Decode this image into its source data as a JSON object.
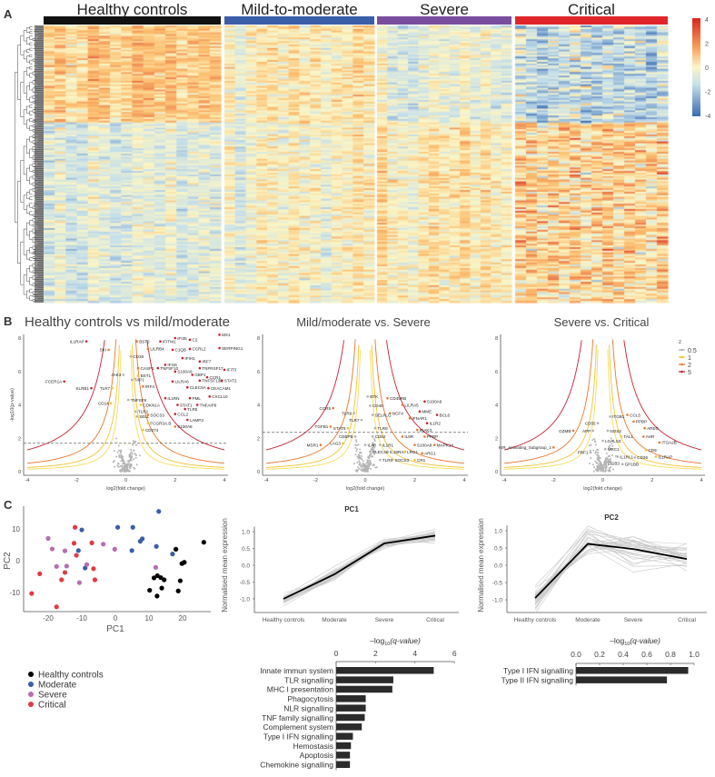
{
  "panel_labels": {
    "a": "A",
    "b": "B",
    "c": "C"
  },
  "chart_data": [
    {
      "type": "heatmap",
      "groups": [
        {
          "name": "Healthy controls",
          "color": "#111111",
          "columns": 16
        },
        {
          "name": "Mild-to-moderate",
          "color": "#3b5ea8",
          "columns": 14
        },
        {
          "name": "Severe",
          "color": "#7a4e9e",
          "columns": 13
        },
        {
          "name": "Critical",
          "color": "#e0262a",
          "columns": 14
        }
      ],
      "colorbar": {
        "ticks": [
          "4",
          "2",
          "0",
          "-2",
          "-4"
        ],
        "range": [
          -4,
          4
        ],
        "low": "#3a6bb2",
        "mid": "#fbf6c6",
        "high": "#d7261e"
      },
      "row_dendrogram": true
    },
    {
      "type": "scatter",
      "title": "Healthy controls vs mild/moderate",
      "xlabel": "log2(fold change)",
      "ylabel": "-log10(p-value)",
      "xlim": [
        -4,
        4
      ],
      "ylim": [
        0,
        8
      ],
      "xticks": [
        "-4",
        "-2",
        "0",
        "2",
        "4"
      ],
      "yticks": [
        "0",
        "2",
        "4",
        "6",
        "8"
      ],
      "threshold": 1.7,
      "labeled_genes": [
        {
          "gene": "IL1RAP",
          "x": -1.6,
          "y": 7.8
        },
        {
          "gene": "SKI",
          "x": -0.7,
          "y": 7.3
        },
        {
          "gene": "FCER1A",
          "x": -2.5,
          "y": 5.4
        },
        {
          "gene": "KLRB1",
          "x": -1.4,
          "y": 5.0
        },
        {
          "gene": "BST2",
          "x": 0.45,
          "y": 7.8
        },
        {
          "gene": "IFITM1",
          "x": 1.4,
          "y": 7.8
        },
        {
          "gene": "IFI35",
          "x": 2.0,
          "y": 8.0
        },
        {
          "gene": "C2",
          "x": 2.6,
          "y": 7.9
        },
        {
          "gene": "MX1",
          "x": 3.8,
          "y": 8.2
        },
        {
          "gene": "LILRB4",
          "x": 0.9,
          "y": 7.35
        },
        {
          "gene": "C1QB",
          "x": 1.9,
          "y": 7.3
        },
        {
          "gene": "CCRL2",
          "x": 2.6,
          "y": 7.35
        },
        {
          "gene": "SERPING1",
          "x": 3.8,
          "y": 7.4
        },
        {
          "gene": "CD36",
          "x": 0.2,
          "y": 6.9
        },
        {
          "gene": "IFIH1",
          "x": 2.3,
          "y": 6.8
        },
        {
          "gene": "IRF7",
          "x": 3.0,
          "y": 6.6
        },
        {
          "gene": "IFI16",
          "x": 1.6,
          "y": 6.4
        },
        {
          "gene": "CASP1",
          "x": 0.5,
          "y": 6.2
        },
        {
          "gene": "TNFSF10",
          "x": 1.3,
          "y": 6.2
        },
        {
          "gene": "TNFRSF17",
          "x": 3.0,
          "y": 6.2
        },
        {
          "gene": "IFIT3",
          "x": 4.0,
          "y": 6.1
        },
        {
          "gene": "S100A9",
          "x": 2.0,
          "y": 6.0
        },
        {
          "gene": "JAK3",
          "x": -0.1,
          "y": 5.8
        },
        {
          "gene": "BST1",
          "x": 0.5,
          "y": 5.75
        },
        {
          "gene": "GBP1",
          "x": 2.7,
          "y": 5.8
        },
        {
          "gene": "CCR1",
          "x": 3.3,
          "y": 5.65
        },
        {
          "gene": "TAP1",
          "x": 0.25,
          "y": 5.5
        },
        {
          "gene": "LILRA6",
          "x": 1.9,
          "y": 5.4
        },
        {
          "gene": "TNFSF13B",
          "x": 3.0,
          "y": 5.45
        },
        {
          "gene": "STAT2",
          "x": 3.9,
          "y": 5.45
        },
        {
          "gene": "TLR7",
          "x": -0.55,
          "y": 5.0
        },
        {
          "gene": "IRF4",
          "x": 0.7,
          "y": 5.1
        },
        {
          "gene": "CLEC5A",
          "x": 2.5,
          "y": 5.05
        },
        {
          "gene": "CEACAM1",
          "x": 3.35,
          "y": 5.0
        },
        {
          "gene": "TNFSF8",
          "x": 0.1,
          "y": 4.3
        },
        {
          "gene": "IL1RN",
          "x": 1.6,
          "y": 4.4
        },
        {
          "gene": "PML",
          "x": 2.6,
          "y": 4.4
        },
        {
          "gene": "CXCL10",
          "x": 3.4,
          "y": 4.5
        },
        {
          "gene": "CD14",
          "x": -0.6,
          "y": 4.1
        },
        {
          "gene": "CDKN1A",
          "x": 0.6,
          "y": 4.0
        },
        {
          "gene": "STAT1",
          "x": 2.1,
          "y": 4.0
        },
        {
          "gene": "TNFAIP6",
          "x": 2.9,
          "y": 4.0
        },
        {
          "gene": "TLR2",
          "x": 0.4,
          "y": 3.6
        },
        {
          "gene": "TLR5",
          "x": 2.4,
          "y": 3.75
        },
        {
          "gene": "CCL2",
          "x": 2.0,
          "y": 3.45
        },
        {
          "gene": "SELL",
          "x": 0.45,
          "y": 3.3
        },
        {
          "gene": "SOCS3",
          "x": 0.9,
          "y": 3.4
        },
        {
          "gene": "LAMP3",
          "x": 2.5,
          "y": 3.1
        },
        {
          "gene": "FCGR3A.B",
          "x": 0.9,
          "y": 2.9
        },
        {
          "gene": "S100A8",
          "x": 2.0,
          "y": 2.7
        },
        {
          "gene": "CD274",
          "x": 0.7,
          "y": 2.5
        }
      ]
    },
    {
      "type": "scatter",
      "title": "Mild/moderate vs. Severe",
      "xlabel": "log2(fold change)",
      "ylabel": "-log10(p-value)",
      "xlim": [
        -4,
        4
      ],
      "ylim": [
        0,
        8
      ],
      "xticks": [
        "-4",
        "-2",
        "0",
        "2",
        "4"
      ],
      "yticks": [
        "0",
        "2",
        "4",
        "6",
        "8"
      ],
      "threshold": 2.35,
      "labeled_genes": [
        {
          "gene": "BTK",
          "x": 0.1,
          "y": 4.5
        },
        {
          "gene": "CD45RB",
          "x": 0.9,
          "y": 4.4
        },
        {
          "gene": "CD46",
          "x": 0.2,
          "y": 3.95
        },
        {
          "gene": "LILRA5",
          "x": 1.5,
          "y": 4.0
        },
        {
          "gene": "S100A9",
          "x": 2.4,
          "y": 4.2
        },
        {
          "gene": "CCR5",
          "x": -1.3,
          "y": 3.8
        },
        {
          "gene": "TLR9",
          "x": -0.45,
          "y": 3.5
        },
        {
          "gene": "SELPLG",
          "x": 0.3,
          "y": 3.4
        },
        {
          "gene": "NCF4",
          "x": 1.0,
          "y": 3.5
        },
        {
          "gene": "MME",
          "x": 2.2,
          "y": 3.6
        },
        {
          "gene": "BCL6",
          "x": 2.9,
          "y": 3.4
        },
        {
          "gene": "TLR7",
          "x": -0.15,
          "y": 3.1
        },
        {
          "gene": "IFNAR1",
          "x": 1.8,
          "y": 3.2
        },
        {
          "gene": "IL1R2",
          "x": 2.5,
          "y": 2.9
        },
        {
          "gene": "TGFB1",
          "x": -1.4,
          "y": 2.7
        },
        {
          "gene": "STAT5",
          "x": -0.7,
          "y": 2.6
        },
        {
          "gene": "TLR8",
          "x": 0.4,
          "y": 2.6
        },
        {
          "gene": "IRAK3",
          "x": 2.1,
          "y": 2.5
        },
        {
          "gene": "CEBPB",
          "x": -0.4,
          "y": 2.1
        },
        {
          "gene": "CD52",
          "x": 0.3,
          "y": 2.1
        },
        {
          "gene": "IL6R",
          "x": 1.5,
          "y": 2.1
        },
        {
          "gene": "PPBP",
          "x": 2.4,
          "y": 2.1
        },
        {
          "gene": "MSR1",
          "x": -1.8,
          "y": 1.6
        },
        {
          "gene": "LAG3",
          "x": -0.9,
          "y": 1.7
        },
        {
          "gene": "IL4R",
          "x": 0.0,
          "y": 1.6
        },
        {
          "gene": "IL1R1",
          "x": 0.6,
          "y": 1.6
        },
        {
          "gene": "S100A8",
          "x": 2.0,
          "y": 1.6
        },
        {
          "gene": "MAPK14",
          "x": 2.8,
          "y": 1.6
        },
        {
          "gene": "CLEC4E",
          "x": 0.2,
          "y": 1.2
        },
        {
          "gene": "IL18RAP",
          "x": 0.9,
          "y": 1.2
        },
        {
          "gene": "LRG1",
          "x": 1.6,
          "y": 1.2
        },
        {
          "gene": "ARG1",
          "x": 2.3,
          "y": 1.1
        },
        {
          "gene": "TLR5",
          "x": 0.6,
          "y": 0.7
        },
        {
          "gene": "SOCS3",
          "x": 1.1,
          "y": 0.7
        },
        {
          "gene": "CR1",
          "x": 2.0,
          "y": 0.7
        }
      ]
    },
    {
      "type": "scatter",
      "title": "Severe vs. Critical",
      "xlabel": "log2(fold change)",
      "ylabel": "-log10(p-value)",
      "xlim": [
        -4,
        4
      ],
      "ylim": [
        0,
        8
      ],
      "xticks": [
        "-4",
        "-2",
        "0",
        "2",
        "4"
      ],
      "yticks": [
        "0",
        "2",
        "4",
        "6",
        "8"
      ],
      "threshold": null,
      "legend": {
        "title": "z",
        "position": "top-right",
        "entries": [
          {
            "label": "0.5",
            "color": "#b0b0b0"
          },
          {
            "label": "1",
            "color": "#f2c230"
          },
          {
            "label": "2",
            "color": "#e8772e"
          },
          {
            "label": "5",
            "color": "#c81f30"
          }
        ]
      },
      "labeled_genes": [
        {
          "gene": "ITGB1",
          "x": 0.3,
          "y": 3.3
        },
        {
          "gene": "CCL5",
          "x": 1.0,
          "y": 3.4
        },
        {
          "gene": "CD55",
          "x": -0.2,
          "y": 2.9
        },
        {
          "gene": "PPBP",
          "x": 1.25,
          "y": 3.0
        },
        {
          "gene": "AREG",
          "x": 1.7,
          "y": 2.6
        },
        {
          "gene": "APP",
          "x": -0.4,
          "y": 2.45
        },
        {
          "gene": "NOS2",
          "x": 0.2,
          "y": 2.45
        },
        {
          "gene": "GZMB",
          "x": -1.2,
          "y": 2.45
        },
        {
          "gene": "TAL1",
          "x": 0.75,
          "y": 2.1
        },
        {
          "gene": "AHR",
          "x": 1.65,
          "y": 2.1
        },
        {
          "gene": "LGALS3",
          "x": 0.0,
          "y": 1.85
        },
        {
          "gene": "ITGA2B",
          "x": 2.3,
          "y": 1.75
        },
        {
          "gene": "KIR_Activating_Subgroup_1",
          "x": -2.0,
          "y": 1.45
        },
        {
          "gene": "MRC1",
          "x": 0.1,
          "y": 1.35
        },
        {
          "gene": "CD9",
          "x": 1.75,
          "y": 1.3
        },
        {
          "gene": "PRF1",
          "x": -0.5,
          "y": 1.15
        },
        {
          "gene": "IL1RL1",
          "x": 0.6,
          "y": 0.9
        },
        {
          "gene": "CD36",
          "x": 1.3,
          "y": 0.85
        },
        {
          "gene": "IL1RAP",
          "x": 2.15,
          "y": 0.9
        },
        {
          "gene": "ITGB3",
          "x": 0.1,
          "y": 0.5
        },
        {
          "gene": "GP1BB",
          "x": 0.8,
          "y": 0.45
        }
      ]
    },
    {
      "type": "scatter",
      "title": "",
      "xlabel": "PC1",
      "ylabel": "PC2",
      "xticks": [
        "-20",
        "-10",
        "0",
        "10",
        "20"
      ],
      "yticks": [
        "10",
        "0",
        "-10"
      ],
      "xlim": [
        -27,
        27
      ],
      "ylim": [
        -16,
        17
      ],
      "legend": {
        "position": "bottom-left"
      },
      "series": [
        {
          "name": "Healthy controls",
          "color": "#000000",
          "points": [
            [
              26.3,
              5.8
            ],
            [
              18,
              3.6
            ],
            [
              19.8,
              -0.9
            ],
            [
              20.5,
              -0.5
            ],
            [
              12.5,
              -4.7
            ],
            [
              11.5,
              -5.4
            ],
            [
              13.5,
              -5.3
            ],
            [
              14.5,
              -6
            ],
            [
              19.3,
              -6.3
            ],
            [
              10.2,
              -9.3
            ],
            [
              13.8,
              -8.6
            ],
            [
              18.7,
              -9.5
            ],
            [
              12.4,
              -11.1
            ]
          ]
        },
        {
          "name": "Moderate",
          "color": "#3b5ea8",
          "points": [
            [
              12.9,
              15.5
            ],
            [
              0.7,
              10.5
            ],
            [
              5.2,
              10.5
            ],
            [
              -10,
              9.7
            ],
            [
              8,
              6.9
            ],
            [
              7.4,
              6.1
            ],
            [
              12.2,
              4.5
            ],
            [
              4.9,
              3.2
            ],
            [
              -11,
              3.2
            ],
            [
              17,
              2.1
            ],
            [
              -9,
              -2.3
            ]
          ]
        },
        {
          "name": "Severe",
          "color": "#b66db4",
          "points": [
            [
              -20,
              7
            ],
            [
              -18.8,
              3.7
            ],
            [
              -15,
              3.1
            ],
            [
              -3.6,
              5.2
            ],
            [
              -0.2,
              3.6
            ],
            [
              -17.5,
              -1.8
            ],
            [
              -14.5,
              -1.7
            ],
            [
              -8.5,
              -1.2
            ],
            [
              -10.7,
              -6.9
            ],
            [
              12,
              -2.1
            ]
          ]
        },
        {
          "name": "Critical",
          "color": "#e03a44",
          "points": [
            [
              -12,
              10.5
            ],
            [
              -12.3,
              5.5
            ],
            [
              -7,
              5.6
            ],
            [
              -11.6,
              1.7
            ],
            [
              -22.5,
              -4.1
            ],
            [
              -15,
              -3.7
            ],
            [
              -6.5,
              -2.5
            ],
            [
              -16,
              -6
            ],
            [
              -6.1,
              -6
            ],
            [
              -24.9,
              -10.3
            ],
            [
              -17.5,
              -14.5
            ]
          ]
        }
      ]
    },
    {
      "type": "line",
      "title": "PC1",
      "xlabel": "",
      "ylabel": "Normalised mean expression",
      "categories": [
        "Healthy controls",
        "Moderate",
        "Severe",
        "Critical"
      ],
      "yticks": [
        "1.0",
        "0.5",
        "0.0",
        "-0.5",
        "-1.0"
      ],
      "ylim": [
        -1.35,
        1.15
      ],
      "series": [
        {
          "name": "mean",
          "values": [
            -1.0,
            -0.27,
            0.65,
            0.88
          ]
        }
      ]
    },
    {
      "type": "line",
      "title": "PC2",
      "xlabel": "",
      "ylabel": "Normalised mean expression",
      "categories": [
        "Healthy controls",
        "Moderate",
        "Severe",
        "Critical"
      ],
      "yticks": [
        "1.0",
        "0.5",
        "0.0",
        "-0.5",
        "-1.0"
      ],
      "ylim": [
        -1.3,
        1.15
      ],
      "series": [
        {
          "name": "mean",
          "values": [
            -0.95,
            0.62,
            0.47,
            0.18
          ]
        }
      ]
    },
    {
      "type": "bar",
      "title": "–log10(q-value)",
      "title_main": "–log",
      "title_sub": "10",
      "title_rest": "(q-value)",
      "xticks": [
        "0",
        "2",
        "4",
        "6"
      ],
      "xlim": [
        0,
        6
      ],
      "categories": [
        "Innate immun system",
        "TLR signalling",
        "MHC I presentation",
        "Phagocytosis",
        "NLR signalling",
        "TNF family signalling",
        "Complement system",
        "Type I IFN signalling",
        "Hemostasis",
        "Apoptosis",
        "Chemokine signalling"
      ],
      "values": [
        4.95,
        2.9,
        2.85,
        1.5,
        1.5,
        1.45,
        1.3,
        0.85,
        0.75,
        0.7,
        0.7
      ]
    },
    {
      "type": "bar",
      "title": "–log10(q-value)",
      "title_main": "–log",
      "title_sub": "10",
      "title_rest": "(q-value)",
      "xticks": [
        "0.0",
        "0.2",
        "0.4",
        "0.6",
        "0.8",
        "1.0"
      ],
      "xlim": [
        0,
        1.0
      ],
      "categories": [
        "Type I IFN signalling",
        "Type II IFN signalling"
      ],
      "values": [
        0.95,
        0.77
      ]
    }
  ]
}
